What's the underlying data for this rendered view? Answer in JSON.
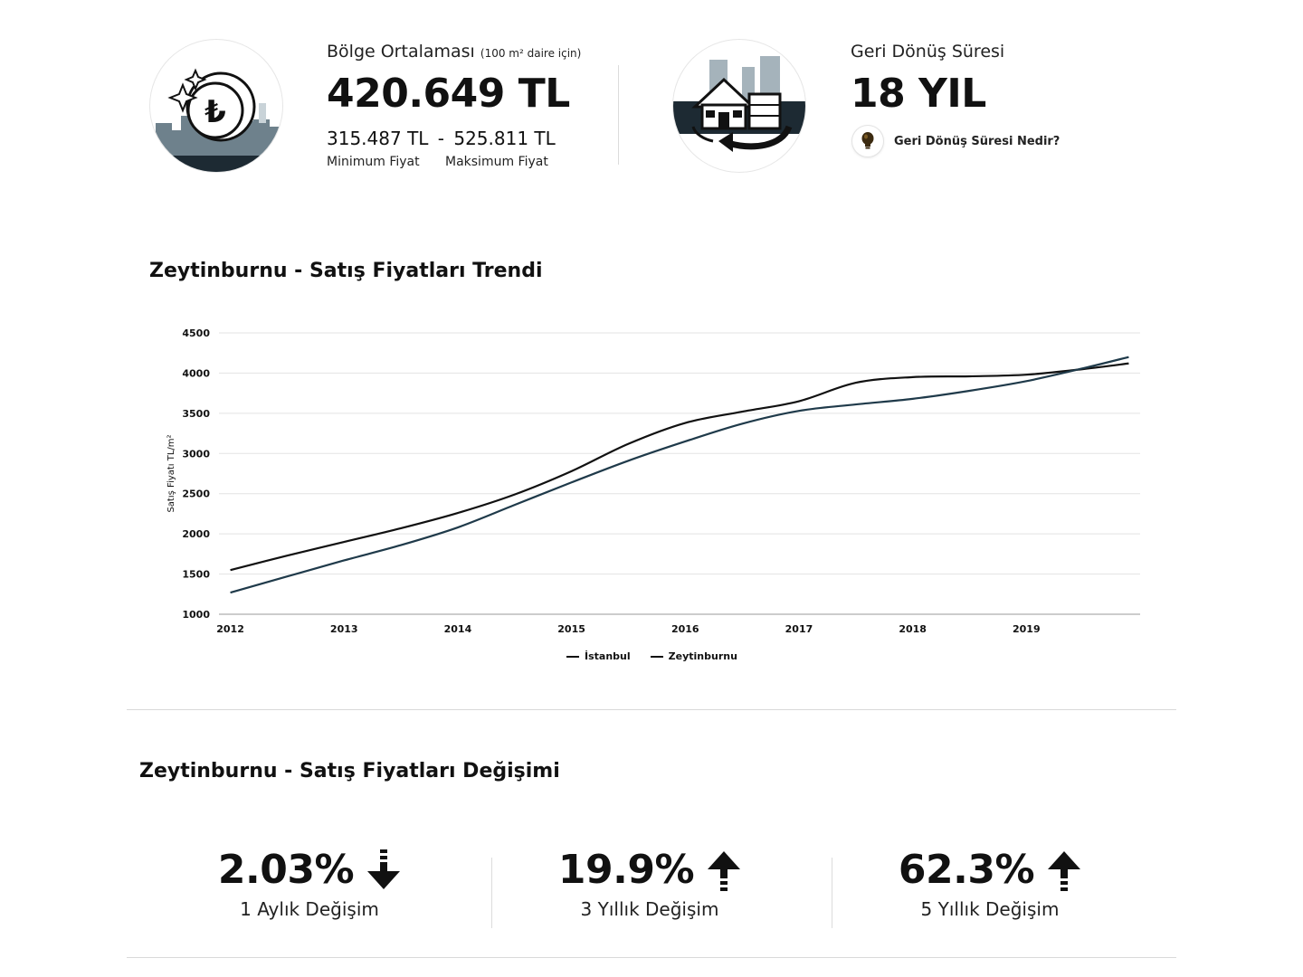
{
  "summary": {
    "average_label": "Bölge Ortalaması",
    "average_note": "(100 m² daire için)",
    "average_value": "420.649 TL",
    "min_value": "315.487 TL",
    "range_sep": "-",
    "max_value": "525.811 TL",
    "min_label": "Minimum Fiyat",
    "max_label": "Maksimum Fiyat",
    "payback_label": "Geri Dönüş Süresi",
    "payback_value": "18 YIL",
    "payback_help": "Geri Dönüş Süresi Nedir?",
    "icons": [
      "lira-coin-icon",
      "house-return-icon",
      "lightbulb-icon"
    ]
  },
  "trend": {
    "title": "Zeytinburnu - Satış Fiyatları Trendi"
  },
  "chart_data": {
    "type": "line",
    "title": "",
    "xlabel": "",
    "ylabel": "Satış Fiyatı TL/m²",
    "ylim": [
      1000,
      4500
    ],
    "yticks": [
      1000,
      1500,
      2000,
      2500,
      3000,
      3500,
      4000,
      4500
    ],
    "xticks": [
      "2012",
      "2013",
      "2014",
      "2015",
      "2016",
      "2017",
      "2018",
      "2019"
    ],
    "x": [
      2012.0,
      2012.5,
      2013.0,
      2013.5,
      2014.0,
      2014.5,
      2015.0,
      2015.5,
      2016.0,
      2016.5,
      2017.0,
      2017.5,
      2018.0,
      2018.5,
      2019.0,
      2019.5,
      2019.9
    ],
    "grid": true,
    "legend_position": "bottom-center",
    "series": [
      {
        "name": "İstanbul",
        "color": "#111111",
        "values": [
          1550,
          1730,
          1900,
          2070,
          2260,
          2490,
          2780,
          3120,
          3380,
          3520,
          3650,
          3880,
          3950,
          3960,
          3980,
          4050,
          4120
        ]
      },
      {
        "name": "Zeytinburnu",
        "color": "#1f3a4a",
        "values": [
          1270,
          1470,
          1670,
          1860,
          2080,
          2360,
          2640,
          2910,
          3150,
          3370,
          3530,
          3610,
          3680,
          3780,
          3900,
          4060,
          4200
        ]
      }
    ]
  },
  "change": {
    "title": "Zeytinburnu - Satış Fiyatları Değişimi",
    "items": [
      {
        "value": "2.03%",
        "label": "1 Aylık Değişim",
        "direction": "down",
        "icon": "arrow-down-icon"
      },
      {
        "value": "19.9%",
        "label": "3 Yıllık Değişim",
        "direction": "up",
        "icon": "arrow-up-icon"
      },
      {
        "value": "62.3%",
        "label": "5 Yıllık Değişim",
        "direction": "up",
        "icon": "arrow-up-icon"
      }
    ]
  }
}
